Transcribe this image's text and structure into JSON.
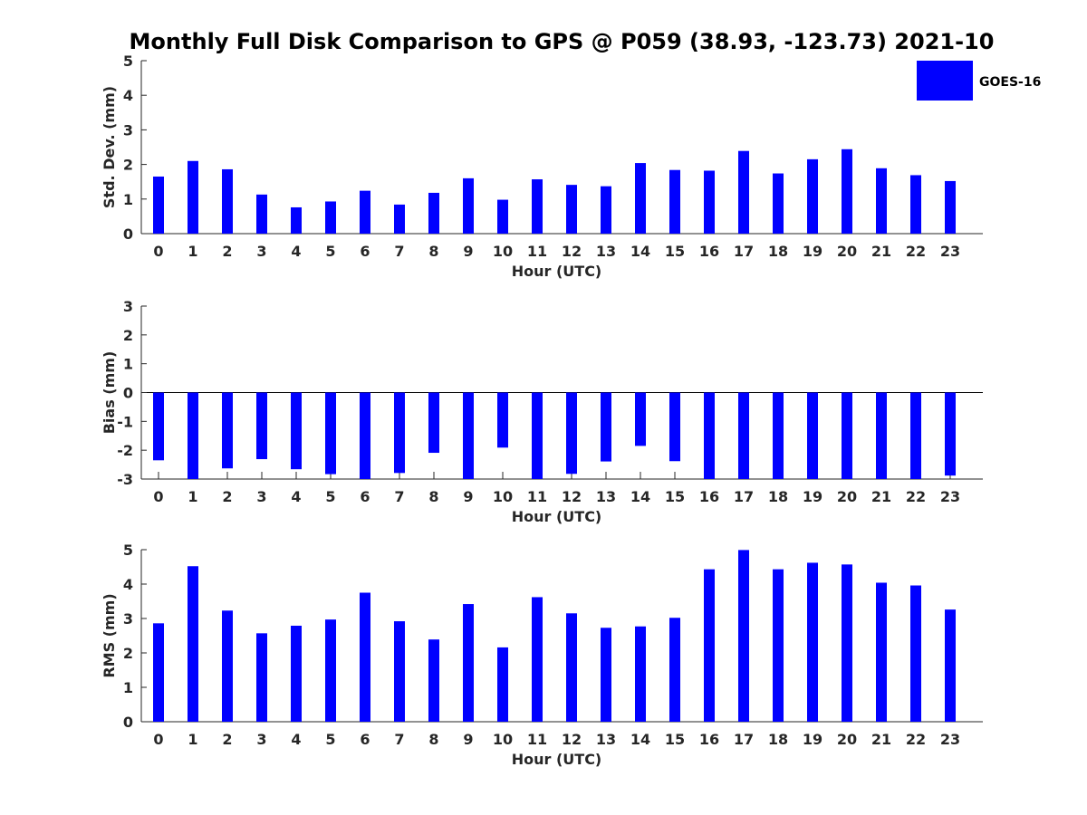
{
  "colors": {
    "series": "#0000ff",
    "axis": "#262626"
  },
  "title": "Monthly Full Disk Comparison to GPS @ P059 (38.93, -123.73) 2021-10",
  "legend": {
    "label": "GOES-16",
    "placement": "top-right"
  },
  "chart_data": [
    {
      "type": "bar",
      "categories": [
        "0",
        "1",
        "2",
        "3",
        "4",
        "5",
        "6",
        "7",
        "8",
        "9",
        "10",
        "11",
        "12",
        "13",
        "14",
        "15",
        "16",
        "17",
        "18",
        "19",
        "20",
        "21",
        "22",
        "23"
      ],
      "series": [
        {
          "name": "GOES-16",
          "values": [
            1.65,
            2.1,
            1.86,
            1.13,
            0.76,
            0.93,
            1.24,
            0.84,
            1.18,
            1.6,
            0.98,
            1.57,
            1.41,
            1.37,
            2.04,
            1.84,
            1.82,
            2.39,
            1.74,
            2.15,
            2.44,
            1.89,
            1.69,
            1.52
          ]
        }
      ],
      "xlabel": "Hour (UTC)",
      "ylabel": "Std. Dev. (mm)",
      "ylim": [
        0,
        5
      ],
      "yticks": [
        "0",
        "1",
        "2",
        "3",
        "4",
        "5"
      ],
      "grid": false
    },
    {
      "type": "bar",
      "categories": [
        "0",
        "1",
        "2",
        "3",
        "4",
        "5",
        "6",
        "7",
        "8",
        "9",
        "10",
        "11",
        "12",
        "13",
        "14",
        "15",
        "16",
        "17",
        "18",
        "19",
        "20",
        "21",
        "22",
        "23"
      ],
      "series": [
        {
          "name": "GOES-16",
          "values": [
            -2.35,
            -3.0,
            -2.63,
            -2.31,
            -2.66,
            -2.83,
            -3.0,
            -2.79,
            -2.09,
            -3.0,
            -1.91,
            -3.0,
            -2.82,
            -2.39,
            -1.85,
            -2.38,
            -3.0,
            -3.0,
            -3.0,
            -3.0,
            -3.0,
            -3.0,
            -3.0,
            -2.88
          ]
        }
      ],
      "xlabel": "Hour (UTC)",
      "ylabel": "Bias (mm)",
      "ylim": [
        -3,
        3
      ],
      "yticks": [
        "-3",
        "-2",
        "-1",
        "0",
        "1",
        "2",
        "3"
      ],
      "grid": false
    },
    {
      "type": "bar",
      "categories": [
        "0",
        "1",
        "2",
        "3",
        "4",
        "5",
        "6",
        "7",
        "8",
        "9",
        "10",
        "11",
        "12",
        "13",
        "14",
        "15",
        "16",
        "17",
        "18",
        "19",
        "20",
        "21",
        "22",
        "23"
      ],
      "series": [
        {
          "name": "GOES-16",
          "values": [
            2.86,
            4.52,
            3.23,
            2.57,
            2.79,
            2.97,
            3.75,
            2.92,
            2.39,
            3.42,
            2.16,
            3.62,
            3.15,
            2.73,
            2.77,
            3.02,
            4.43,
            4.99,
            4.43,
            4.62,
            4.57,
            4.04,
            3.96,
            3.26
          ]
        }
      ],
      "xlabel": "Hour (UTC)",
      "ylabel": "RMS (mm)",
      "ylim": [
        0,
        5
      ],
      "yticks": [
        "0",
        "1",
        "2",
        "3",
        "4",
        "5"
      ],
      "grid": false
    }
  ]
}
